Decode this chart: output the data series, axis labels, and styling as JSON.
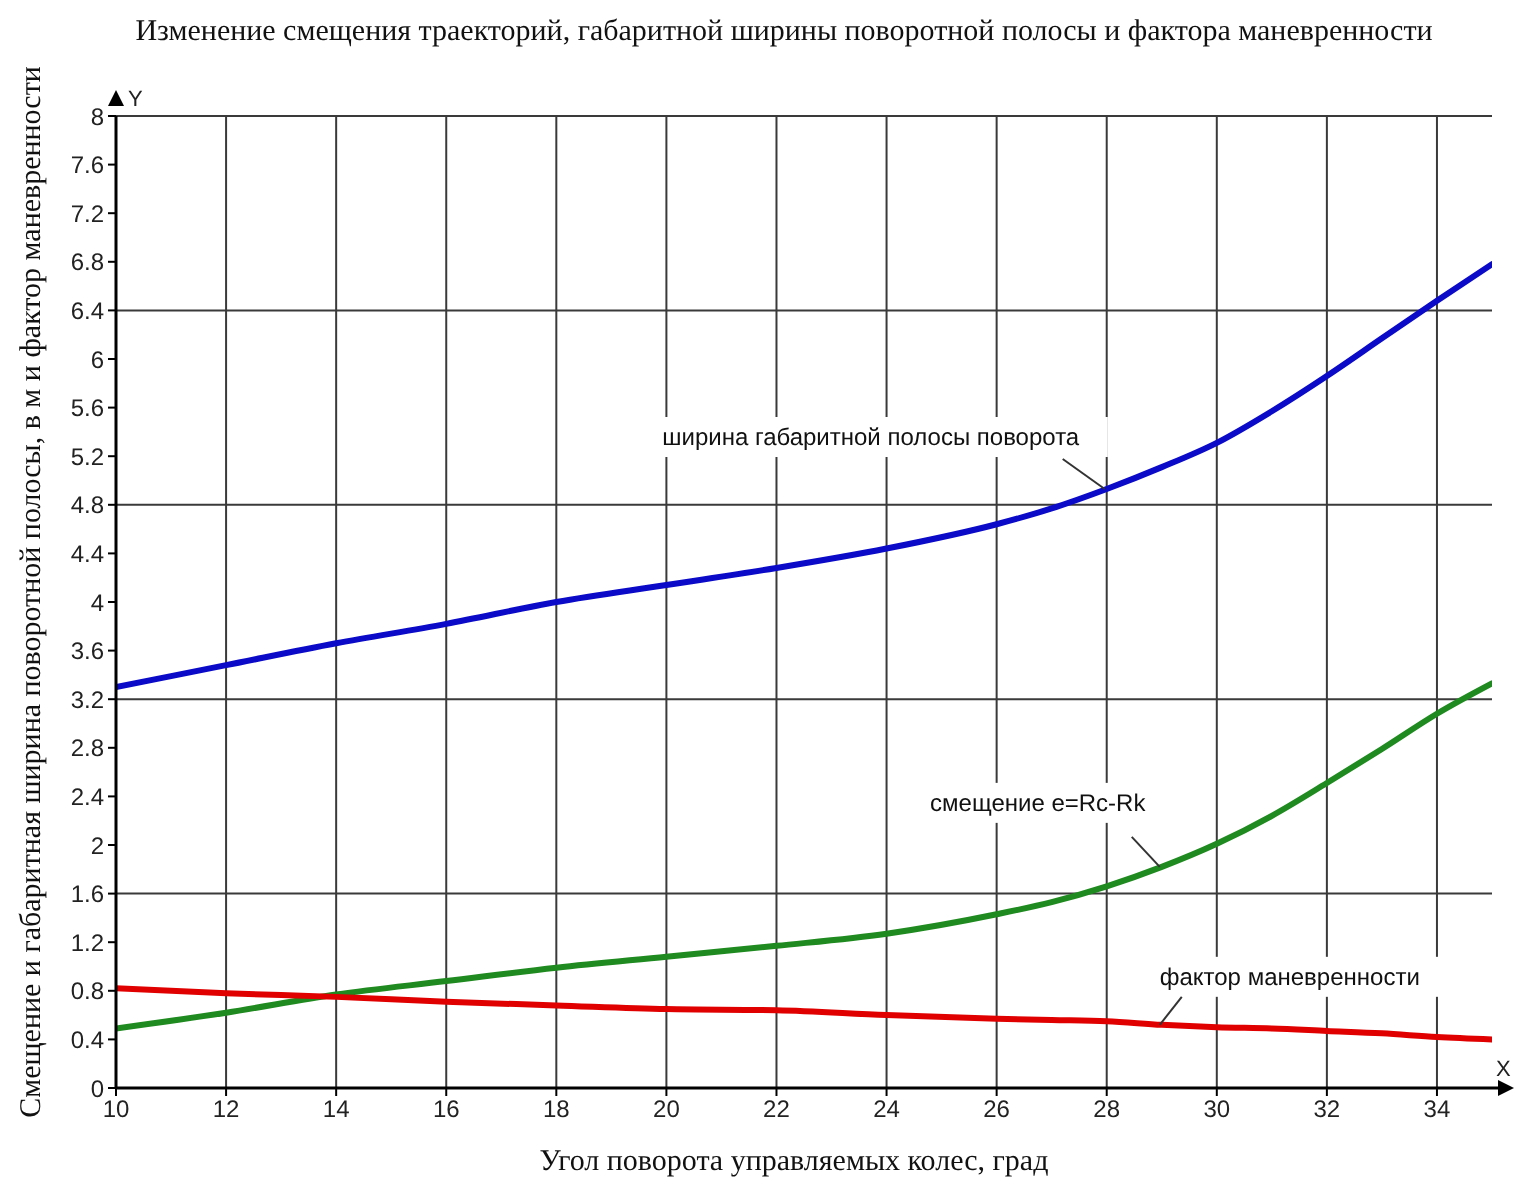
{
  "chart_data": {
    "type": "line",
    "title": "Изменение смещения траекторий, габаритной ширины поворотной полосы и фактора маневренности",
    "xlabel": "Угол поворота управляемых колес, град",
    "ylabel": "Смещение и габаритная ширина поворотной полосы, в м и фактор маневренности",
    "annotations": [
      "Y",
      "X"
    ],
    "x": [
      10,
      12,
      14,
      16,
      18,
      20,
      22,
      24,
      26,
      27,
      28,
      29,
      30,
      31,
      32,
      33,
      34,
      35
    ],
    "series": [
      {
        "name": "ширина габаритной полосы поворота",
        "color": "#0a0ac8",
        "values": [
          3.3,
          3.48,
          3.66,
          3.82,
          4.0,
          4.14,
          4.28,
          4.44,
          4.64,
          4.77,
          4.93,
          5.11,
          5.31,
          5.57,
          5.86,
          6.17,
          6.48,
          6.78
        ]
      },
      {
        "name": "смещение e=Rc-Rk",
        "color": "#1f8a1f",
        "values": [
          0.49,
          0.62,
          0.77,
          0.88,
          0.99,
          1.08,
          1.17,
          1.27,
          1.43,
          1.53,
          1.66,
          1.82,
          2.01,
          2.24,
          2.51,
          2.79,
          3.08,
          3.33
        ]
      },
      {
        "name": "фактор маневренности",
        "color": "#e00000",
        "values": [
          0.82,
          0.78,
          0.75,
          0.71,
          0.68,
          0.65,
          0.64,
          0.6,
          0.57,
          0.56,
          0.55,
          0.52,
          0.5,
          0.49,
          0.47,
          0.45,
          0.42,
          0.4
        ]
      }
    ],
    "xlim": [
      10,
      35
    ],
    "xticks": [
      10,
      12,
      14,
      16,
      18,
      20,
      22,
      24,
      26,
      28,
      30,
      32,
      34
    ],
    "ylim": [
      0,
      8
    ],
    "yticks": [
      0,
      0.4,
      0.8,
      1.2,
      1.6,
      2,
      2.4,
      2.8,
      3.2,
      3.6,
      4,
      4.4,
      4.8,
      5.2,
      5.6,
      6,
      6.4,
      6.8,
      7.2,
      7.6,
      8
    ],
    "grid": true,
    "marker": "none",
    "line_style": "solid"
  }
}
